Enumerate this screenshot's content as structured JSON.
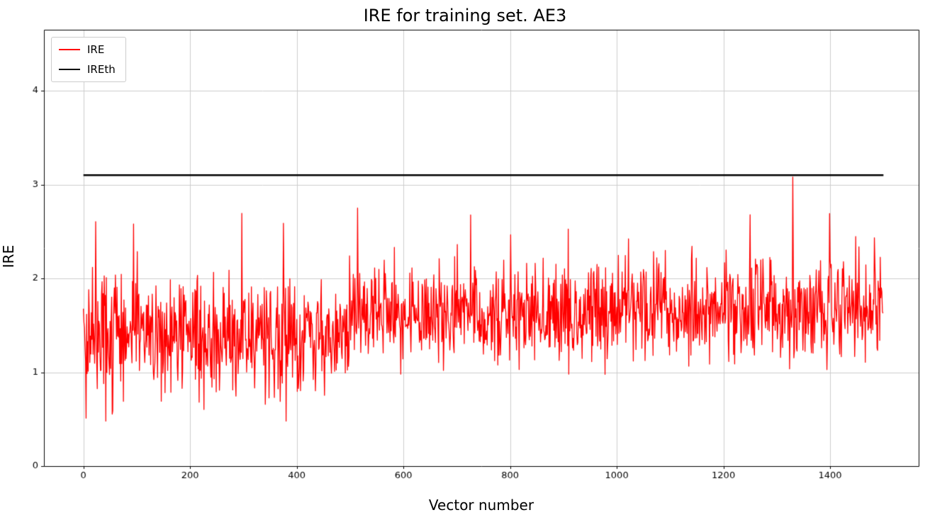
{
  "figure": {
    "title": "IRE for training set. AE3",
    "xlabel": "Vector number",
    "ylabel": "IRE"
  },
  "legend": {
    "items": [
      {
        "label": "IRE",
        "color": "#ff0000",
        "linewidth": 2
      },
      {
        "label": "IREth",
        "color": "#000000",
        "linewidth": 2
      }
    ]
  },
  "chart_data": {
    "type": "line",
    "title": "IRE for training set. AE3",
    "xlabel": "Vector number",
    "ylabel": "IRE",
    "xlim": [
      -74,
      1566
    ],
    "ylim": [
      0,
      4.65
    ],
    "xticks": [
      0,
      200,
      400,
      600,
      800,
      1000,
      1200,
      1400
    ],
    "yticks": [
      0,
      1,
      2,
      3,
      4
    ],
    "grid": true,
    "grid_color": "#cccccc",
    "legend_position": "upper-left",
    "series": [
      {
        "name": "IRE",
        "type": "noisy-line",
        "color": "#ff0000",
        "linewidth": 1.3,
        "n_points": 1500,
        "x_start": 0,
        "x_end": 1499,
        "segments": [
          {
            "x_from": 0,
            "x_to": 500,
            "mean": 1.38,
            "std": 0.3
          },
          {
            "x_from": 500,
            "x_to": 1000,
            "mean": 1.6,
            "std": 0.26
          },
          {
            "x_from": 1000,
            "x_to": 1500,
            "mean": 1.68,
            "std": 0.26
          }
        ],
        "value_min": 0.45,
        "value_max": 2.75,
        "spikes": {
          "probability": 0.012,
          "range": [
            2.2,
            2.75
          ]
        },
        "dips": {
          "probability": 0.018,
          "x_max": 520,
          "range": [
            0.45,
            0.8
          ]
        },
        "peak_point": {
          "x": 1330,
          "y": 3.08
        },
        "seed": 42
      },
      {
        "name": "IREth",
        "type": "hline",
        "color": "#000000",
        "linewidth": 2.5,
        "y": 3.1,
        "x_from": 0,
        "x_to": 1500
      }
    ]
  }
}
